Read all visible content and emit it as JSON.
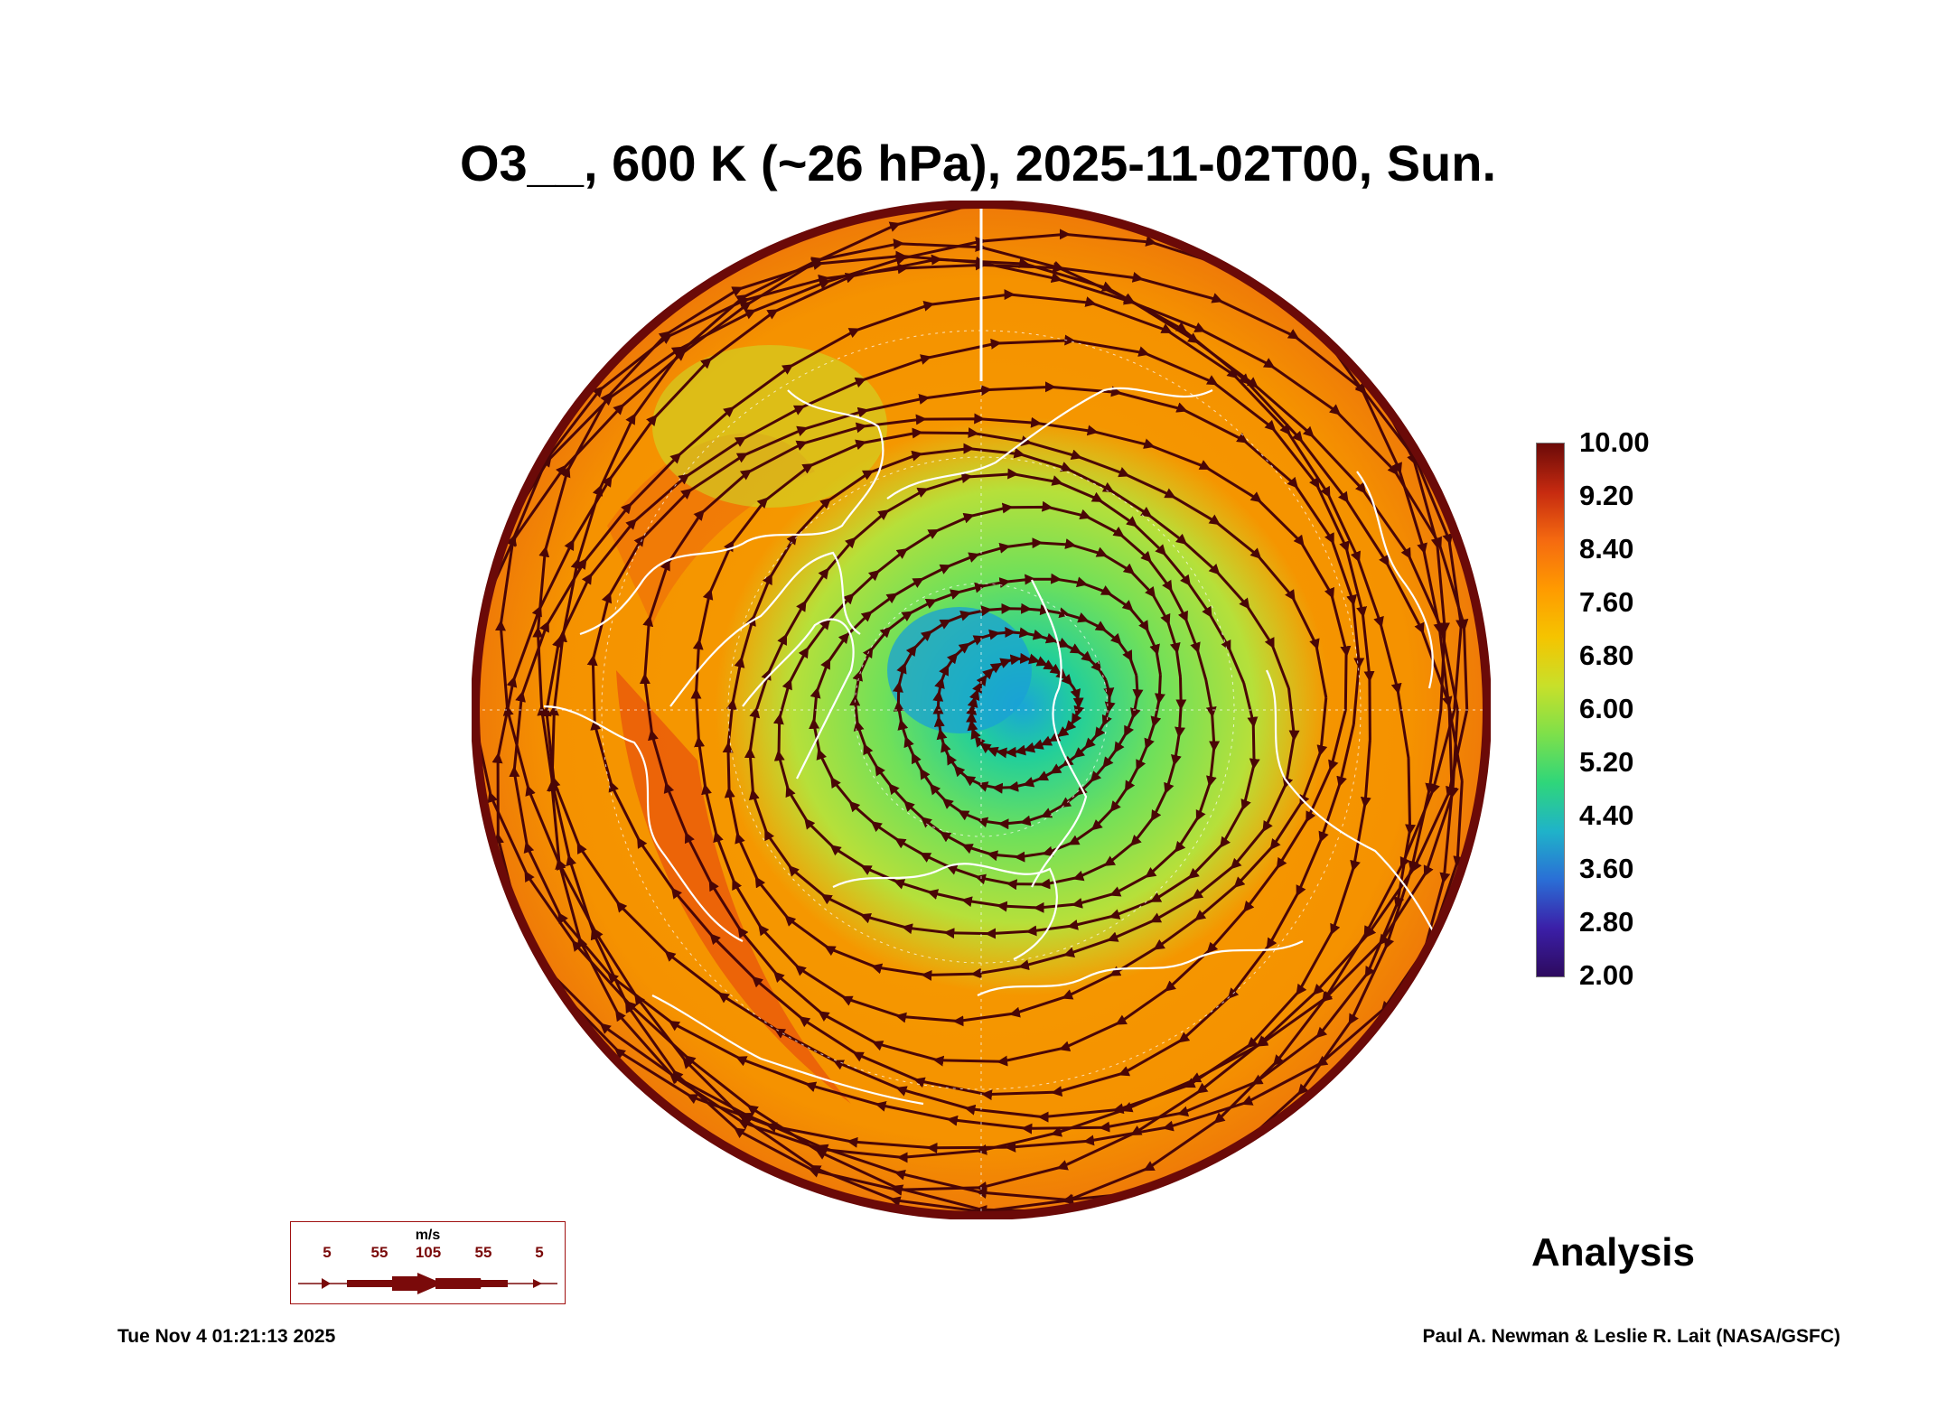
{
  "title": "O3__, 600 K (~26 hPa), 2025-11-02T00, Sun.",
  "colorbar": {
    "labels": [
      "10.00",
      "9.20",
      "8.40",
      "7.60",
      "6.80",
      "6.00",
      "5.20",
      "4.40",
      "3.60",
      "2.80",
      "2.00"
    ],
    "min": 2.0,
    "max": 10.0,
    "colors": [
      "#2d0a5e",
      "#3b1fa8",
      "#2a6fd6",
      "#1fb3c9",
      "#2fd67a",
      "#7ee04a",
      "#c8e02a",
      "#f5c400",
      "#ff9a00",
      "#f56a10",
      "#c62a10",
      "#6b0a08"
    ]
  },
  "speed_legend": {
    "units": "m/s",
    "labels": [
      "5",
      "55",
      "105",
      "55",
      "5"
    ],
    "color": "#7a0a0a"
  },
  "analysis_label": "Analysis",
  "timestamp": "Tue Nov  4 01:21:13 2025",
  "credit": "Paul A. Newman & Leslie R. Lait (NASA/GSFC)"
}
